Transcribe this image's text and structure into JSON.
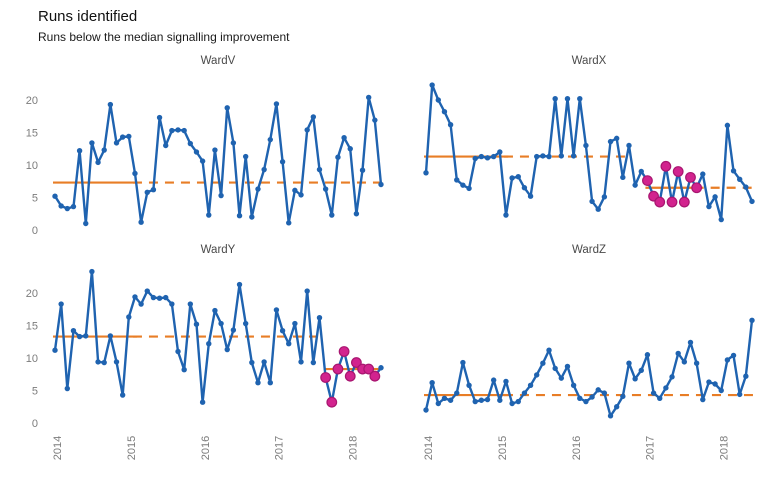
{
  "title": "Runs identified",
  "subtitle": "Runs below the median signalling improvement",
  "colors": {
    "line": "#1F63B0",
    "median": "#E87D26",
    "highlight_fill": "#D2238E",
    "highlight_stroke": "#A81670",
    "axis_text": "#7C7C7C",
    "panel_title_text": "#4A4A4A",
    "background": "#FFFFFF"
  },
  "chart_data": [
    {
      "type": "line",
      "title": "WardV",
      "ylim": [
        0,
        23.5
      ],
      "y_ticks": [
        0,
        5,
        10,
        15,
        20
      ],
      "x_tick_labels": [
        "2014",
        "2015",
        "2016",
        "2017",
        "2018"
      ],
      "x_tick_index": [
        1,
        13,
        25,
        37,
        49
      ],
      "values": [
        5.2,
        3.7,
        3.3,
        3.6,
        12.2,
        1.0,
        13.4,
        10.4,
        12.3,
        19.3,
        13.4,
        14.3,
        14.4,
        8.7,
        1.2,
        5.8,
        6.2,
        17.3,
        13.0,
        15.3,
        15.4,
        15.3,
        13.3,
        12.0,
        10.6,
        2.3,
        12.3,
        5.3,
        18.8,
        13.4,
        2.2,
        11.3,
        2.0,
        6.3,
        9.3,
        13.9,
        19.4,
        10.5,
        1.1,
        6.1,
        5.4,
        15.4,
        17.4,
        9.3,
        6.3,
        2.3,
        11.2,
        14.2,
        12.5,
        2.5,
        9.2,
        20.4,
        16.9,
        7.0
      ],
      "highlight_indices": [],
      "median_segments": [
        {
          "value": 7.3,
          "from": 0,
          "to": 13,
          "style": "solid"
        },
        {
          "value": 7.3,
          "from": 13,
          "to": 53,
          "style": "dashed"
        }
      ]
    },
    {
      "type": "line",
      "title": "WardX",
      "ylim": [
        0,
        23.5
      ],
      "y_ticks": [
        0,
        5,
        10,
        15,
        20
      ],
      "x_tick_labels": [
        "2014",
        "2015",
        "2016",
        "2017",
        "2018"
      ],
      "x_tick_index": [
        1,
        13,
        25,
        37,
        49
      ],
      "values": [
        8.8,
        22.3,
        20.0,
        18.2,
        16.2,
        7.7,
        6.9,
        6.4,
        11.0,
        11.3,
        11.1,
        11.3,
        12.0,
        2.3,
        8.0,
        8.2,
        6.5,
        5.2,
        11.3,
        11.4,
        11.3,
        20.2,
        11.4,
        20.2,
        11.4,
        20.2,
        13.0,
        4.4,
        3.2,
        5.1,
        13.6,
        14.1,
        8.1,
        13.0,
        6.9,
        9.0,
        7.6,
        5.2,
        4.3,
        9.8,
        4.3,
        9.0,
        4.3,
        8.1,
        6.5,
        8.6,
        3.6,
        5.1,
        1.6,
        16.1,
        9.1,
        7.8,
        6.6,
        4.4
      ],
      "highlight_indices": [
        36,
        37,
        38,
        39,
        40,
        41,
        42,
        43,
        44
      ],
      "median_segments": [
        {
          "value": 11.3,
          "from": 0,
          "to": 13,
          "style": "solid"
        },
        {
          "value": 11.3,
          "from": 13,
          "to": 33,
          "style": "dashed"
        },
        {
          "value": 6.5,
          "from": 36,
          "to": 44,
          "style": "solid"
        },
        {
          "value": 6.5,
          "from": 44,
          "to": 53,
          "style": "dashed"
        }
      ]
    },
    {
      "type": "line",
      "title": "WardY",
      "ylim": [
        0,
        23.5
      ],
      "y_ticks": [
        0,
        5,
        10,
        15,
        20
      ],
      "x_tick_labels": [
        "2014",
        "2015",
        "2016",
        "2017",
        "2018"
      ],
      "x_tick_index": [
        1,
        13,
        25,
        37,
        49
      ],
      "values": [
        11.2,
        18.3,
        5.3,
        14.2,
        13.3,
        13.4,
        23.3,
        9.4,
        9.3,
        13.4,
        9.4,
        4.3,
        16.3,
        19.4,
        18.3,
        20.3,
        19.3,
        19.2,
        19.3,
        18.3,
        11.0,
        8.2,
        18.3,
        15.2,
        3.2,
        12.2,
        17.3,
        15.3,
        11.3,
        14.3,
        21.3,
        15.3,
        9.3,
        6.2,
        9.4,
        6.2,
        17.4,
        14.2,
        12.2,
        15.3,
        9.4,
        20.3,
        9.3,
        16.2,
        7.0,
        3.2,
        8.3,
        11.0,
        7.2,
        9.3,
        8.3,
        8.3,
        7.2,
        8.5
      ],
      "highlight_indices": [
        44,
        45,
        46,
        47,
        48,
        49,
        50,
        51,
        52
      ],
      "median_segments": [
        {
          "value": 13.3,
          "from": 0,
          "to": 13,
          "style": "solid"
        },
        {
          "value": 13.3,
          "from": 13,
          "to": 43,
          "style": "dashed"
        },
        {
          "value": 8.3,
          "from": 44,
          "to": 52,
          "style": "solid"
        },
        {
          "value": 8.3,
          "from": 52,
          "to": 53,
          "style": "dashed"
        }
      ]
    },
    {
      "type": "line",
      "title": "WardZ",
      "ylim": [
        0,
        23.5
      ],
      "y_ticks": [
        0,
        5,
        10,
        15,
        20
      ],
      "x_tick_labels": [
        "2014",
        "2015",
        "2016",
        "2017",
        "2018"
      ],
      "x_tick_index": [
        1,
        13,
        25,
        37,
        49
      ],
      "values": [
        2.0,
        6.2,
        3.0,
        3.8,
        3.5,
        4.6,
        9.3,
        5.8,
        3.3,
        3.5,
        3.6,
        6.6,
        3.5,
        6.4,
        3.0,
        3.3,
        4.6,
        5.8,
        7.4,
        9.2,
        11.2,
        8.4,
        6.9,
        8.7,
        5.8,
        3.8,
        3.3,
        4.0,
        5.1,
        4.6,
        1.1,
        2.5,
        4.1,
        9.2,
        6.8,
        8.1,
        10.5,
        4.6,
        3.8,
        5.4,
        7.1,
        10.7,
        9.4,
        12.4,
        9.2,
        3.6,
        6.3,
        6.0,
        5.0,
        9.7,
        10.4,
        4.4,
        7.2,
        15.8
      ],
      "highlight_indices": [],
      "median_segments": [
        {
          "value": 4.3,
          "from": 0,
          "to": 13,
          "style": "solid"
        },
        {
          "value": 4.3,
          "from": 13,
          "to": 53,
          "style": "dashed"
        }
      ]
    }
  ]
}
